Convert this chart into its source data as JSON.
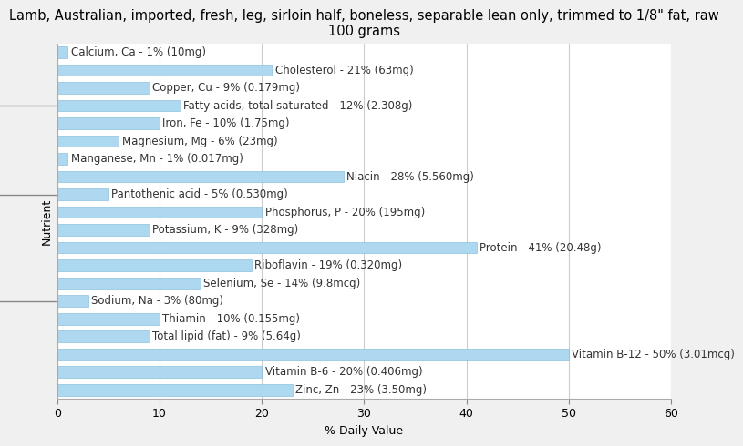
{
  "title": "Lamb, Australian, imported, fresh, leg, sirloin half, boneless, separable lean only, trimmed to 1/8\" fat, raw\n100 grams",
  "xlabel": "% Daily Value",
  "ylabel": "Nutrient",
  "nutrients": [
    "Calcium, Ca - 1% (10mg)",
    "Cholesterol - 21% (63mg)",
    "Copper, Cu - 9% (0.179mg)",
    "Fatty acids, total saturated - 12% (2.308g)",
    "Iron, Fe - 10% (1.75mg)",
    "Magnesium, Mg - 6% (23mg)",
    "Manganese, Mn - 1% (0.017mg)",
    "Niacin - 28% (5.560mg)",
    "Pantothenic acid - 5% (0.530mg)",
    "Phosphorus, P - 20% (195mg)",
    "Potassium, K - 9% (328mg)",
    "Protein - 41% (20.48g)",
    "Riboflavin - 19% (0.320mg)",
    "Selenium, Se - 14% (9.8mcg)",
    "Sodium, Na - 3% (80mg)",
    "Thiamin - 10% (0.155mg)",
    "Total lipid (fat) - 9% (5.64g)",
    "Vitamin B-12 - 50% (3.01mcg)",
    "Vitamin B-6 - 20% (0.406mg)",
    "Zinc, Zn - 23% (3.50mg)"
  ],
  "values": [
    1,
    21,
    9,
    12,
    10,
    6,
    1,
    28,
    5,
    20,
    9,
    41,
    19,
    14,
    3,
    10,
    9,
    50,
    20,
    23
  ],
  "bar_color": "#add8f0",
  "bar_edge_color": "#7ab8d8",
  "background_color": "#f0f0f0",
  "plot_background_color": "#ffffff",
  "xlim": [
    0,
    60
  ],
  "xticks": [
    0,
    10,
    20,
    30,
    40,
    50,
    60
  ],
  "title_fontsize": 10.5,
  "label_fontsize": 8.5,
  "axis_label_fontsize": 9,
  "tick_fontsize": 9,
  "label_color": "#333333",
  "grid_color": "#cccccc",
  "bar_height": 0.65,
  "ytick_positions": [
    5,
    11,
    16
  ]
}
